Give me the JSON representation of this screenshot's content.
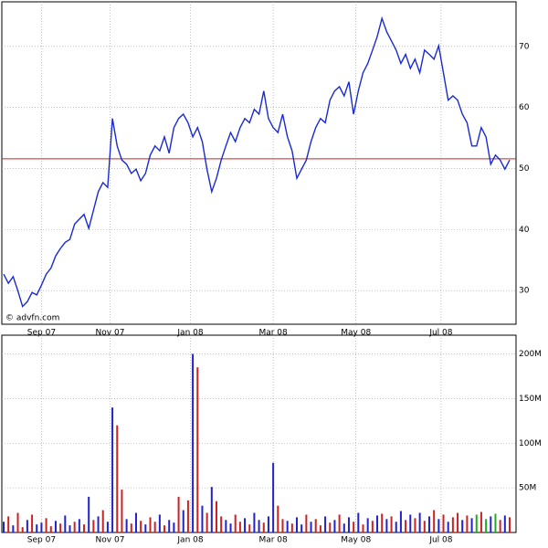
{
  "chart_data": [
    {
      "type": "line",
      "source": "© advfn.com",
      "series": [
        {
          "color": "#1a2ad0",
          "values": [
            32.7,
            31.2,
            32.3,
            30,
            27.4,
            28.2,
            29.7,
            29.3,
            30.9,
            32.7,
            33.7,
            35.7,
            36.9,
            37.9,
            38.4,
            40.9,
            41.7,
            42.5,
            40.2,
            43.2,
            46.2,
            47.7,
            46.9,
            58.2,
            53.7,
            51.4,
            50.7,
            49.2,
            49.9,
            48,
            49.2,
            52.2,
            53.7,
            52.9,
            55.2,
            52.5,
            56.7,
            58.2,
            58.9,
            57.5,
            55.2,
            56.7,
            54.4,
            49.9,
            46.2,
            48.4,
            51.4,
            53.7,
            55.9,
            54.4,
            56.7,
            58.2,
            57.5,
            59.7,
            58.9,
            62.7,
            58.2,
            56.7,
            55.9,
            58.9,
            55.2,
            52.9,
            48.4,
            49.9,
            51.4,
            54.4,
            56.7,
            58.2,
            57.5,
            61.2,
            62.7,
            63.4,
            61.9,
            64.2,
            58.9,
            62.7,
            65.7,
            67.2,
            69.4,
            71.6,
            74.6,
            72.4,
            70.9,
            69.4,
            67.2,
            68.7,
            66.4,
            67.9,
            65.7,
            69.4,
            68.7,
            67.9,
            70.1,
            65.7,
            61.2,
            61.9,
            61.2,
            58.9,
            57.5,
            53.7,
            53.7,
            56.7,
            55.2,
            50.7,
            52.2,
            51.4,
            49.9,
            51.4
          ]
        }
      ],
      "reference_line": {
        "value": 51.6,
        "color": "#cc2020"
      },
      "xlim": [
        0,
        107
      ],
      "xticks": [
        {
          "value": 8,
          "label": "Sep 07"
        },
        {
          "value": 22.5,
          "label": "Nov 07"
        },
        {
          "value": 39.5,
          "label": "Jan 08"
        },
        {
          "value": 57,
          "label": "Mar 08"
        },
        {
          "value": 74.5,
          "label": "May 08"
        },
        {
          "value": 92.5,
          "label": "Jul 08"
        }
      ],
      "ylim": [
        24.5,
        77.3
      ],
      "yticks": [
        30,
        40,
        50,
        60,
        70
      ],
      "grid": true
    },
    {
      "type": "bar",
      "values": [
        12,
        18,
        8,
        22,
        6,
        14,
        20,
        9,
        11,
        16,
        7,
        13,
        10,
        19,
        8,
        12,
        15,
        9,
        40,
        14,
        18,
        25,
        12,
        140,
        120,
        48,
        15,
        10,
        22,
        13,
        9,
        17,
        12,
        20,
        8,
        14,
        11,
        40,
        25,
        36,
        200,
        185,
        30,
        22,
        51,
        35,
        18,
        14,
        10,
        20,
        12,
        16,
        9,
        22,
        14,
        11,
        18,
        78,
        30,
        15,
        13,
        10,
        17,
        9,
        20,
        12,
        15,
        8,
        18,
        11,
        14,
        20,
        10,
        17,
        12,
        22,
        9,
        16,
        13,
        19,
        21,
        15,
        18,
        12,
        24,
        14,
        20,
        16,
        22,
        13,
        18,
        25,
        15,
        20,
        12,
        17,
        22,
        14,
        19,
        16,
        20,
        23,
        15,
        18,
        21,
        14,
        19,
        17
      ],
      "colors": [
        "#22c",
        "#c22",
        "#22c",
        "#c22",
        "#c22",
        "#22c",
        "#c22",
        "#22c",
        "#22c",
        "#c22",
        "#c22",
        "#22c",
        "#c22",
        "#22c",
        "#22c",
        "#c22",
        "#22c",
        "#c22",
        "#22c",
        "#c22",
        "#22c",
        "#c22",
        "#22c",
        "#22c",
        "#c22",
        "#c22",
        "#22c",
        "#c22",
        "#22c",
        "#c22",
        "#22c",
        "#c22",
        "#c22",
        "#22c",
        "#c22",
        "#22c",
        "#22c",
        "#c22",
        "#22c",
        "#c22",
        "#22c",
        "#c22",
        "#22c",
        "#c22",
        "#22c",
        "#c22",
        "#c22",
        "#22c",
        "#22c",
        "#c22",
        "#c22",
        "#22c",
        "#c22",
        "#22c",
        "#22c",
        "#c22",
        "#22c",
        "#22c",
        "#c22",
        "#c22",
        "#22c",
        "#c22",
        "#22c",
        "#22c",
        "#c22",
        "#22c",
        "#c22",
        "#c22",
        "#22c",
        "#c22",
        "#22c",
        "#c22",
        "#22c",
        "#22c",
        "#c22",
        "#22c",
        "#c22",
        "#22c",
        "#c22",
        "#22c",
        "#c22",
        "#22c",
        "#c22",
        "#22c",
        "#22c",
        "#c22",
        "#22c",
        "#c22",
        "#22c",
        "#c22",
        "#22c",
        "#c22",
        "#22c",
        "#c22",
        "#22c",
        "#c22",
        "#c22",
        "#22c",
        "#c22",
        "#22c",
        "#2a2",
        "#c22",
        "#2a2",
        "#22c",
        "#2a2",
        "#c22",
        "#22c",
        "#c22"
      ],
      "xlim": [
        0,
        107
      ],
      "xticks": [
        {
          "value": 8,
          "label": "Sep 07"
        },
        {
          "value": 22.5,
          "label": "Nov 07"
        },
        {
          "value": 39.5,
          "label": "Jan 08"
        },
        {
          "value": 57,
          "label": "Mar 08"
        },
        {
          "value": 74.5,
          "label": "May 08"
        },
        {
          "value": 92.5,
          "label": "Jul 08"
        }
      ],
      "ylim": [
        0,
        221
      ],
      "yticks": [
        {
          "value": 50,
          "label": "50M"
        },
        {
          "value": 100,
          "label": "100M"
        },
        {
          "value": 150,
          "label": "150M"
        },
        {
          "value": 200,
          "label": "200M"
        }
      ],
      "grid": true
    }
  ]
}
